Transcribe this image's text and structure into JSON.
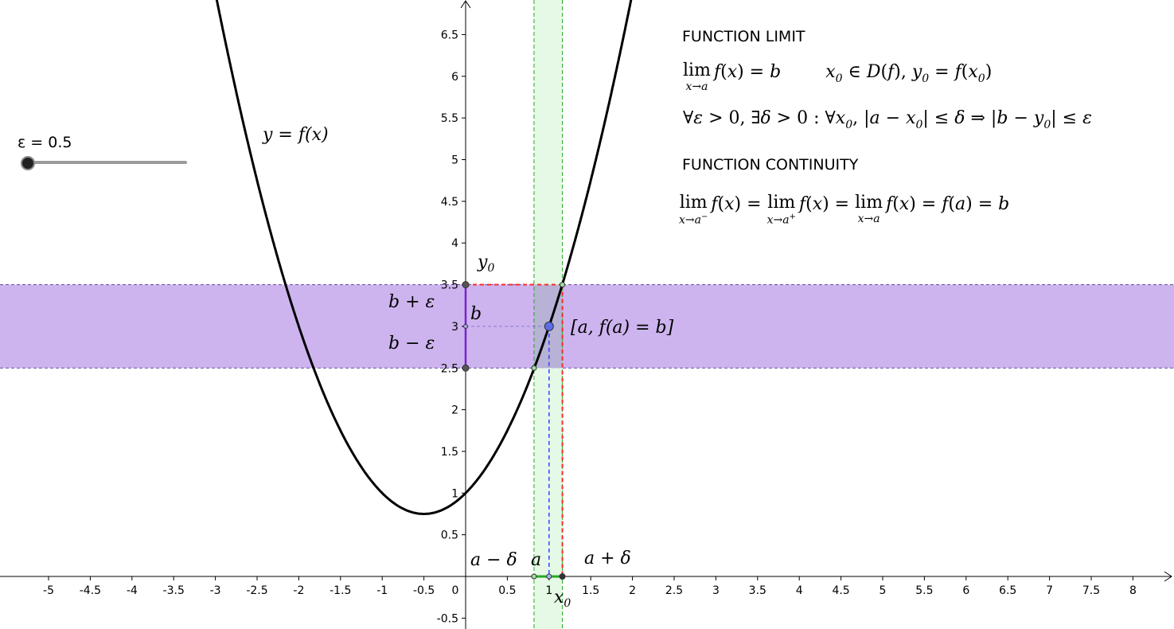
{
  "chart_data": {
    "type": "line",
    "xlim": [
      -5.6,
      8.5
    ],
    "ylim": [
      -0.6,
      6.9
    ],
    "x_ticks": [
      "-5",
      "-4.5",
      "-4",
      "-3.5",
      "-3",
      "-2.5",
      "-2",
      "-1.5",
      "-1",
      "-0.5",
      "0",
      "0.5",
      "1",
      "1.5",
      "2",
      "2.5",
      "3",
      "3.5",
      "4",
      "4.5",
      "5",
      "5.5",
      "6",
      "6.5",
      "7",
      "7.5",
      "8"
    ],
    "y_ticks": [
      "-0.5",
      "0.5",
      "1",
      "1.5",
      "2",
      "2.5",
      "3",
      "3.5",
      "4",
      "4.5",
      "5",
      "5.5",
      "6",
      "6.5"
    ],
    "curve": {
      "label": "y = f(x)",
      "formula": "x^2 + x + 1",
      "vertex": [
        -0.5,
        0.75
      ]
    },
    "a": 1,
    "b": 3,
    "epsilon": 0.5,
    "delta_left": 0.82,
    "delta_right": 1.16,
    "x0": 1.16,
    "y0": 3.5,
    "point_label": "[a, f(a) = b]",
    "labels": {
      "y0": "y0",
      "b_plus_eps": "b + ε",
      "b": "b",
      "b_minus_eps": "b − ε",
      "a_minus_delta": "a − δ",
      "a": "a",
      "a_plus_delta": "a + δ",
      "x0": "x0"
    },
    "colors": {
      "curve": "#000000",
      "epsilon_band": "#cdb4ee",
      "delta_band": "#e2f7e2",
      "delta_lines": "#22aa22",
      "red_dashed": "#ff2a2a",
      "blue_dashed": "#3344ff",
      "point": "#5a6ee8",
      "purple_segment": "#7a22cc"
    }
  },
  "slider": {
    "label": "ε = 0.5",
    "value": 0.5
  },
  "panel": {
    "limit_heading": "FUNCTION LIMIT",
    "continuity_heading": "FUNCTION CONTINUITY"
  }
}
